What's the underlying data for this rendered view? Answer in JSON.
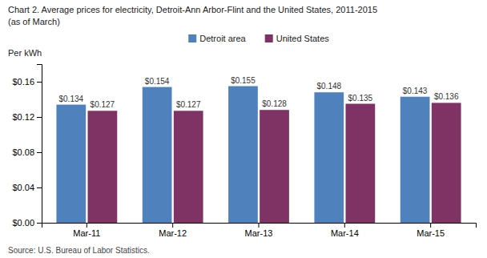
{
  "chart_data": {
    "type": "bar",
    "title": "Chart 2. Average prices for electricity, Detroit-Ann Arbor-Flint and the United States, 2011-2015",
    "subtitle": "(as of March)",
    "ylabel": "Per kWh",
    "annotations": [
      "Source: U.S. Bureau of Labor Statistics."
    ],
    "categories": [
      "Mar-11",
      "Mar-12",
      "Mar-13",
      "Mar-14",
      "Mar-15"
    ],
    "series": [
      {
        "name": "Detroit area",
        "color": "#4F81BD",
        "values": [
          0.134,
          0.154,
          0.155,
          0.148,
          0.143
        ],
        "value_labels": [
          "$0.134",
          "$0.154",
          "$0.155",
          "$0.148",
          "$0.143"
        ]
      },
      {
        "name": "United States",
        "color": "#7F3264",
        "values": [
          0.127,
          0.127,
          0.128,
          0.135,
          0.136
        ],
        "value_labels": [
          "$0.127",
          "$0.127",
          "$0.128",
          "$0.135",
          "$0.136"
        ]
      }
    ],
    "ylim": [
      0,
      0.18
    ],
    "yticks": [
      {
        "value": 0.0,
        "label": "$0.00"
      },
      {
        "value": 0.04,
        "label": "$0.04"
      },
      {
        "value": 0.08,
        "label": "$0.08"
      },
      {
        "value": 0.12,
        "label": "$0.12"
      },
      {
        "value": 0.16,
        "label": "$0.16"
      }
    ],
    "grid": false,
    "legend": "top",
    "data_labels": true
  }
}
